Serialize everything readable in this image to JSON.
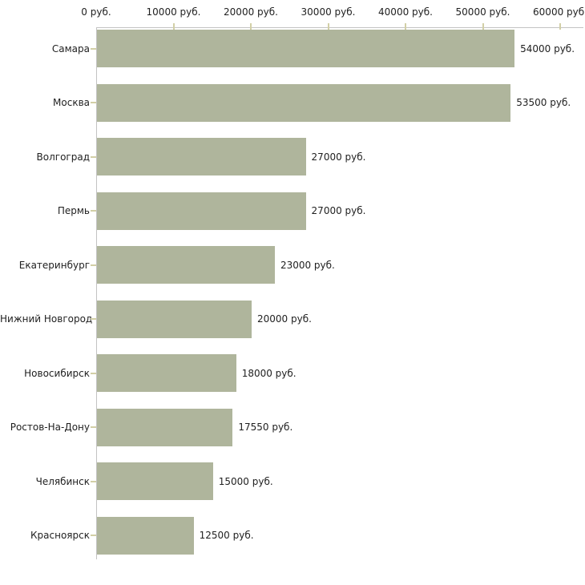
{
  "chart_data": {
    "type": "bar",
    "orientation": "horizontal",
    "title": "",
    "xlabel": "",
    "ylabel": "",
    "grid": "off",
    "legend": "none",
    "currency_suffix": " руб.",
    "categories": [
      "Самара",
      "Москва",
      "Волгоград",
      "Пермь",
      "Екатеринбург",
      "Нижний Новгород",
      "Новосибирск",
      "Ростов-На-Дону",
      "Челябинск",
      "Красноярск"
    ],
    "values": [
      54000,
      53500,
      27000,
      27000,
      23000,
      20000,
      18000,
      17550,
      15000,
      12500
    ],
    "value_labels": [
      "54000 руб.",
      "53500 руб.",
      "27000 руб.",
      "27000 руб.",
      "23000 руб.",
      "20000 руб.",
      "18000 руб.",
      "17550 руб.",
      "15000 руб.",
      "12500 руб."
    ],
    "x_tick_values": [
      0,
      10000,
      20000,
      30000,
      40000,
      50000,
      60000
    ],
    "x_tick_labels": [
      "0 руб.",
      "10000 руб.",
      "20000 руб.",
      "30000 руб.",
      "40000 руб.",
      "50000 руб.",
      "60000 руб."
    ],
    "xlim": [
      0,
      63000
    ],
    "colors": {
      "bar": "#afb59c",
      "tick_mark": "#d2cfa6",
      "axis_line": "#c3c3c3",
      "text": "#1f1f1f",
      "background": "#ffffff"
    }
  }
}
